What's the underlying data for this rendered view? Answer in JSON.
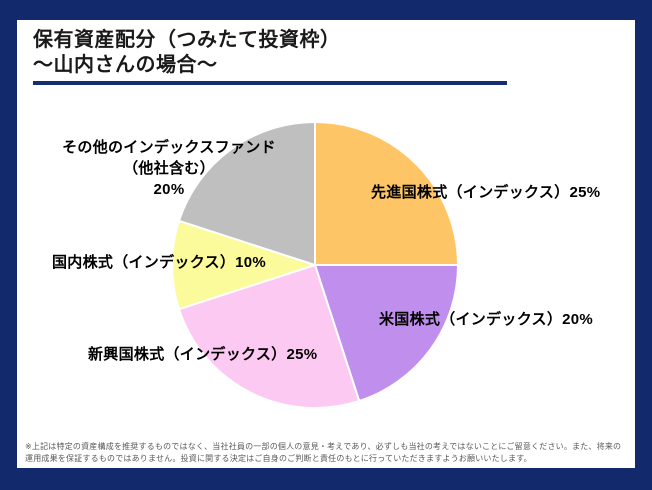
{
  "page": {
    "background_navy": "#12296B",
    "panel_background": "#FFFFFF",
    "underline_color": "#152E6E"
  },
  "header": {
    "title_line1": "保有資産配分（つみたて投資枠）",
    "title_line2": "～山内さんの場合～"
  },
  "chart_data": {
    "type": "pie",
    "title": "保有資産配分（つみたて投資枠）～山内さんの場合～",
    "categories": [
      "先進国株式（インデックス）",
      "米国株式（インデックス）",
      "新興国株式（インデックス）",
      "国内株式（インデックス）",
      "その他のインデックスファンド（他社含む）"
    ],
    "values": [
      25,
      20,
      25,
      10,
      20
    ],
    "unit": "%",
    "colors": [
      "#FDC566",
      "#C08FEE",
      "#FCC9F3",
      "#FBFB9B",
      "#BFBFBF"
    ],
    "start_angle_deg": 0,
    "direction": "clockwise",
    "slice_border_color": "#FFFFFF",
    "legend_position": "none",
    "display_labels": {
      "developed": "先進国株式（インデックス）25%",
      "us": "米国株式（インデックス）20%",
      "emerging": "新興国株式（インデックス）25%",
      "domestic": "国内株式（インデックス）10%",
      "other_lines": [
        "その他のインデックスファンド",
        "（他社含む）",
        "20%"
      ]
    }
  },
  "footer": {
    "disclaimer": "※上記は特定の資産構成を推奨するものではなく、当社社員の一部の個人の意見・考えであり、必ずしも当社の考えではないことにご留意ください。また、将来の運用成果を保証するものではありません。投資に関する決定はご自身のご判断と責任のもとに行っていただきますようお願いいたします。"
  }
}
